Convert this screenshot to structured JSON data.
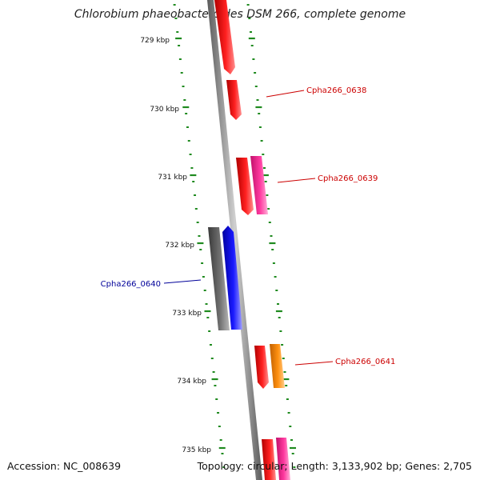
{
  "title": "Chlorobium phaeobacteroides DSM 266, complete genome",
  "accession": "Accession: NC_008639",
  "summary": "Topology: circular; Length: 3,133,902 bp; Genes: 2,705",
  "colors": {
    "backbone": "#8a8a8a",
    "tick": "#1f8a1f",
    "red": "#ff0000",
    "pink": "#ff1493",
    "blue": "#0000ff",
    "gray": "#707070",
    "orange": "#ff8c00",
    "labelRed": "#cc0000",
    "labelBlue": "#000099"
  },
  "ticks": [
    {
      "label": "729 kbp"
    },
    {
      "label": "730 kbp"
    },
    {
      "label": "731 kbp"
    },
    {
      "label": "732 kbp"
    },
    {
      "label": "733 kbp"
    },
    {
      "label": "734 kbp"
    },
    {
      "label": "735 kbp"
    }
  ],
  "gene_labels": [
    {
      "name": "Cpha266_0638",
      "color": "red"
    },
    {
      "name": "Cpha266_0639",
      "color": "red"
    },
    {
      "name": "Cpha266_0640",
      "color": "blue"
    },
    {
      "name": "Cpha266_0641",
      "color": "red"
    }
  ]
}
